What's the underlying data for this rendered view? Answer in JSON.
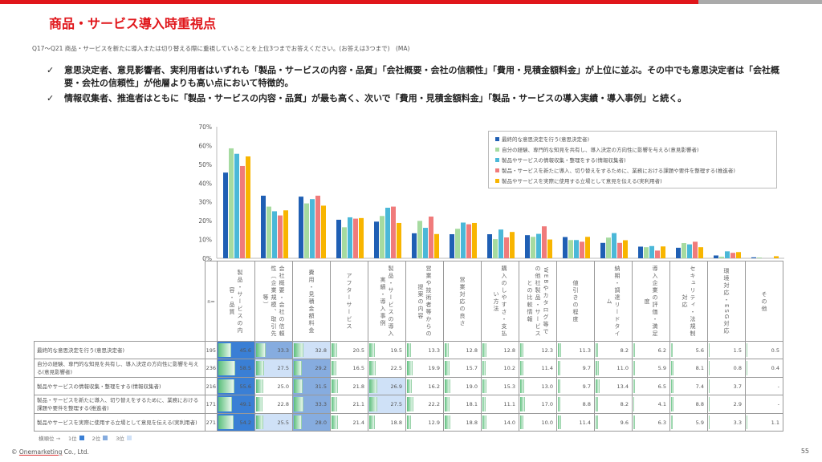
{
  "title": "商品・サービス導入時重視点",
  "question": "Q17～Q21 商品・サービスを新たに導入または切り替える際に重視していることを上位3つまでお答えください。(お答えは3つまで)　(MA)",
  "bullets": [
    "意思決定者、意見影響者、実利用者はいずれも「製品・サービスの内容・品質」「会社概要・会社の信頼性」「費用・見積金額料金」が上位に並ぶ。その中でも意思決定者は「会社概要・会社の信頼性」が他層よりも高い点において特徴的。",
    "情報収集者、推進者はともに「製品・サービスの内容・品質」が最も高く、次いで「費用・見積金額料金」「製品・サービスの導入実績・導入事例」と続く。"
  ],
  "check_icon": "✓",
  "chart_data": {
    "type": "bar",
    "ylim": [
      0,
      70
    ],
    "yticks": [
      "0%",
      "10%",
      "20%",
      "30%",
      "40%",
      "50%",
      "60%",
      "70%"
    ],
    "legend_position": "top-right",
    "categories": [
      "製品・サービスの内容・品質",
      "会社概要・会社の信頼性（企業規模、取引先等）",
      "費用・見積金額料金",
      "アフターサービス",
      "製品・サービスの導入実績・導入事例",
      "営業や技術者等からの提案の内容",
      "営業対応の良さ",
      "購入のしやすさ・支払い方法",
      "WEBやカタログ等での他社製品・サービスとの比較情報",
      "値引きの程度",
      "納期・調達リードタイム",
      "導入企業の評価・満足度",
      "セキュリティ・法規制対応",
      "環境対応・ESG対応",
      "その他"
    ],
    "series": [
      {
        "name": "最終的な意思決定を行う(意思決定者)",
        "n": "195",
        "color": "#1f5fb4",
        "values": [
          45.6,
          33.3,
          32.8,
          20.5,
          19.5,
          13.3,
          12.8,
          12.8,
          12.3,
          11.3,
          8.2,
          6.2,
          5.6,
          1.5,
          0.5
        ]
      },
      {
        "name": "自分の経験、専門的な知見を共有し、導入決定の方向性に影響を与える(意見影響者)",
        "n": "236",
        "color": "#a6dba0",
        "values": [
          58.5,
          27.5,
          29.2,
          16.5,
          22.5,
          19.9,
          15.7,
          10.2,
          11.4,
          9.7,
          11.0,
          5.9,
          8.1,
          0.8,
          0.4
        ]
      },
      {
        "name": "製品やサービスの情報収集・整理をする(情報収集者)",
        "n": "216",
        "color": "#4bb8d8",
        "values": [
          55.6,
          25.0,
          31.5,
          21.8,
          26.9,
          16.2,
          19.0,
          15.3,
          13.0,
          9.7,
          13.4,
          6.5,
          7.4,
          3.7,
          null
        ]
      },
      {
        "name": "製品・サービスを新たに導入、切り替えをするために、業務における課題や要件を整理する(推進者)",
        "n": "171",
        "color": "#f07b7b",
        "values": [
          49.1,
          22.8,
          33.3,
          21.1,
          27.5,
          22.2,
          18.1,
          11.1,
          17.0,
          8.8,
          8.2,
          4.1,
          8.8,
          2.9,
          null
        ]
      },
      {
        "name": "製品やサービスを実際に使用する立場として意見を伝える(実利用者)",
        "n": "271",
        "color": "#f8b500",
        "values": [
          54.2,
          25.5,
          28.0,
          21.4,
          18.8,
          12.9,
          18.8,
          14.0,
          10.0,
          11.4,
          9.6,
          6.3,
          5.9,
          3.3,
          1.1
        ]
      }
    ]
  },
  "table": {
    "n_header": "n=",
    "column_headers": [
      "製品・サービスの内容・品質",
      "会社概要・会社の信頼性（企業規模、取引先等）",
      "費用・見積金額料金",
      "アフターサービス",
      "製品・サービスの導入実績・導入事例",
      "営業や技術者等からの提案の内容",
      "営業対応の良さ",
      "購入のしやすさ・支払い方法",
      "WEBやカタログ等での他社製品・サービスとの比較情報",
      "値引きの程度",
      "納期・調達リードタイム",
      "導入企業の評価・満足度",
      "セキュリティ・法規制対応",
      "環境対応・ESG対応",
      "その他"
    ],
    "missing": "-"
  },
  "rank_legend": {
    "label": "横順位 →",
    "r1": "1位",
    "r2": "2位",
    "r3": "3位",
    "c1": "#3a7fd5",
    "c2": "#86acdf",
    "c3": "#cfe1f7"
  },
  "footer": {
    "copyright": "© ",
    "company": "Onemarketing",
    "rest": " Co., Ltd."
  },
  "page_number": "55"
}
